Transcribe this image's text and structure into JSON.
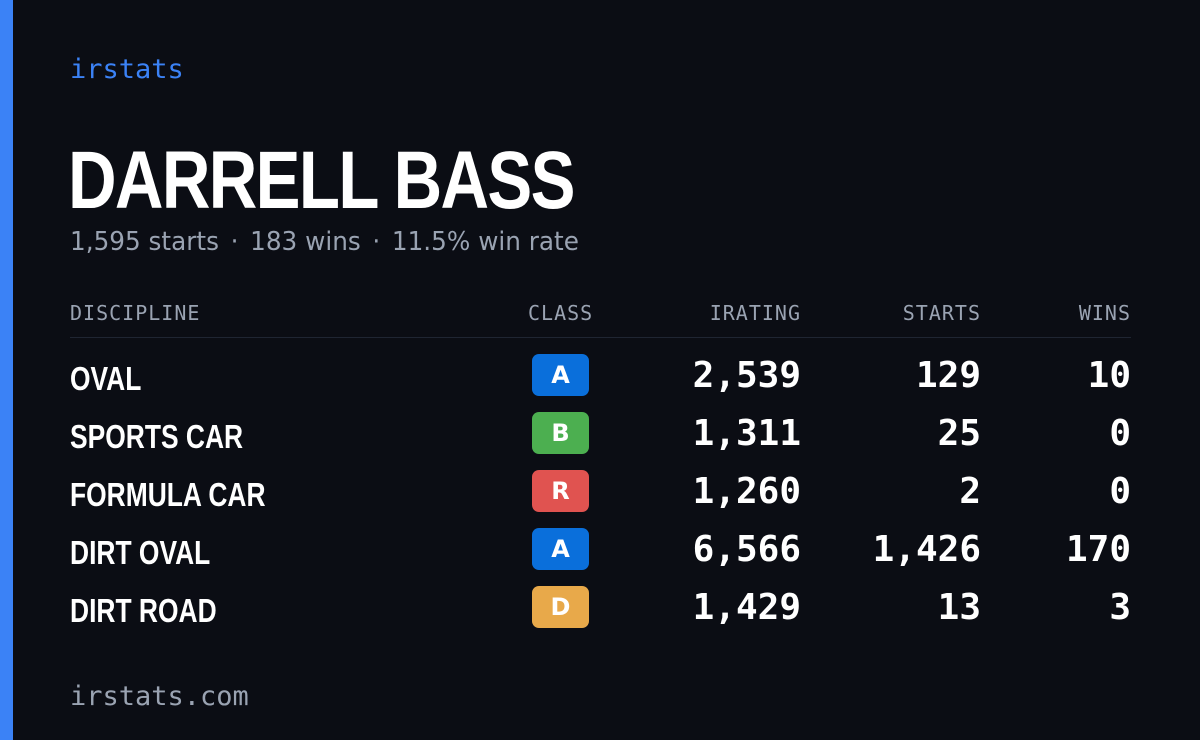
{
  "brand": "irstats",
  "driver": {
    "name": "DARRELL BASS",
    "summary": {
      "starts": "1,595 starts",
      "wins": "183 wins",
      "win_rate": "11.5% win rate",
      "separator": "·"
    }
  },
  "table": {
    "headers": {
      "discipline": "DISCIPLINE",
      "class": "CLASS",
      "irating": "IRATING",
      "starts": "STARTS",
      "wins": "WINS"
    },
    "rows": [
      {
        "discipline": "OVAL",
        "class": "A",
        "class_color": "#0a6fdb",
        "irating": "2,539",
        "starts": "129",
        "wins": "10"
      },
      {
        "discipline": "SPORTS CAR",
        "class": "B",
        "class_color": "#4caf50",
        "irating": "1,311",
        "starts": "25",
        "wins": "0"
      },
      {
        "discipline": "FORMULA CAR",
        "class": "R",
        "class_color": "#e05350",
        "irating": "1,260",
        "starts": "2",
        "wins": "0"
      },
      {
        "discipline": "DIRT OVAL",
        "class": "A",
        "class_color": "#0a6fdb",
        "irating": "6,566",
        "starts": "1,426",
        "wins": "170"
      },
      {
        "discipline": "DIRT ROAD",
        "class": "D",
        "class_color": "#e8a94a",
        "irating": "1,429",
        "starts": "13",
        "wins": "3"
      }
    ]
  },
  "footer": "irstats.com",
  "colors": {
    "accent": "#3b82f6",
    "background": "#0b0d14",
    "muted": "#9aa3b2"
  }
}
